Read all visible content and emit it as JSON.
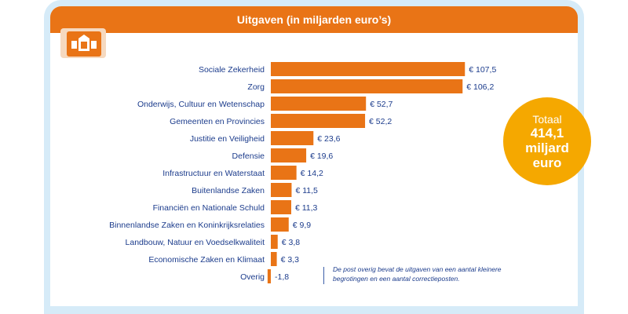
{
  "header": {
    "title": "Uitgaven (in miljarden euro’s)"
  },
  "emblem": {
    "icon": "coat-of-arms-icon"
  },
  "total": {
    "label": "Totaal",
    "amount": "414,1",
    "unit_line1": "miljard",
    "unit_line2": "euro"
  },
  "note": {
    "text": "De post overig bevat de uitgaven van een aantal kleinere begrotingen en een aantal correctieposten."
  },
  "colors": {
    "bar": "#e97416",
    "header": "#e97416",
    "circle": "#f5a800",
    "frame": "#d6ebf8",
    "label": "#1c3c8c"
  },
  "chart_data": {
    "type": "bar",
    "orientation": "horizontal",
    "title": "Uitgaven (in miljarden euro’s)",
    "categories": [
      "Sociale Zekerheid",
      "Zorg",
      "Onderwijs, Cultuur en Wetenschap",
      "Gemeenten en Provincies",
      "Justitie en Veiligheid",
      "Defensie",
      "Infrastructuur en Waterstaat",
      "Buitenlandse Zaken",
      "Financiën en Nationale Schuld",
      "Binnenlandse Zaken en Koninkrijksrelaties",
      "Landbouw, Natuur en Voedselkwaliteit",
      "Economische Zaken en Klimaat",
      "Overig"
    ],
    "values": [
      107.5,
      106.2,
      52.7,
      52.2,
      23.6,
      19.6,
      14.2,
      11.5,
      11.3,
      9.9,
      3.8,
      3.3,
      -1.8
    ],
    "value_labels": [
      "€ 107,5",
      "€ 106,2",
      "€ 52,7",
      "€ 52,2",
      "€ 23,6",
      "€ 19,6",
      "€ 14,2",
      "€ 11,5",
      "€ 11,3",
      "€ 9,9",
      "€ 3,8",
      "€ 3,3",
      "-1,8"
    ],
    "xlim": [
      -1.8,
      107.5
    ],
    "grid": false,
    "legend": "none"
  }
}
